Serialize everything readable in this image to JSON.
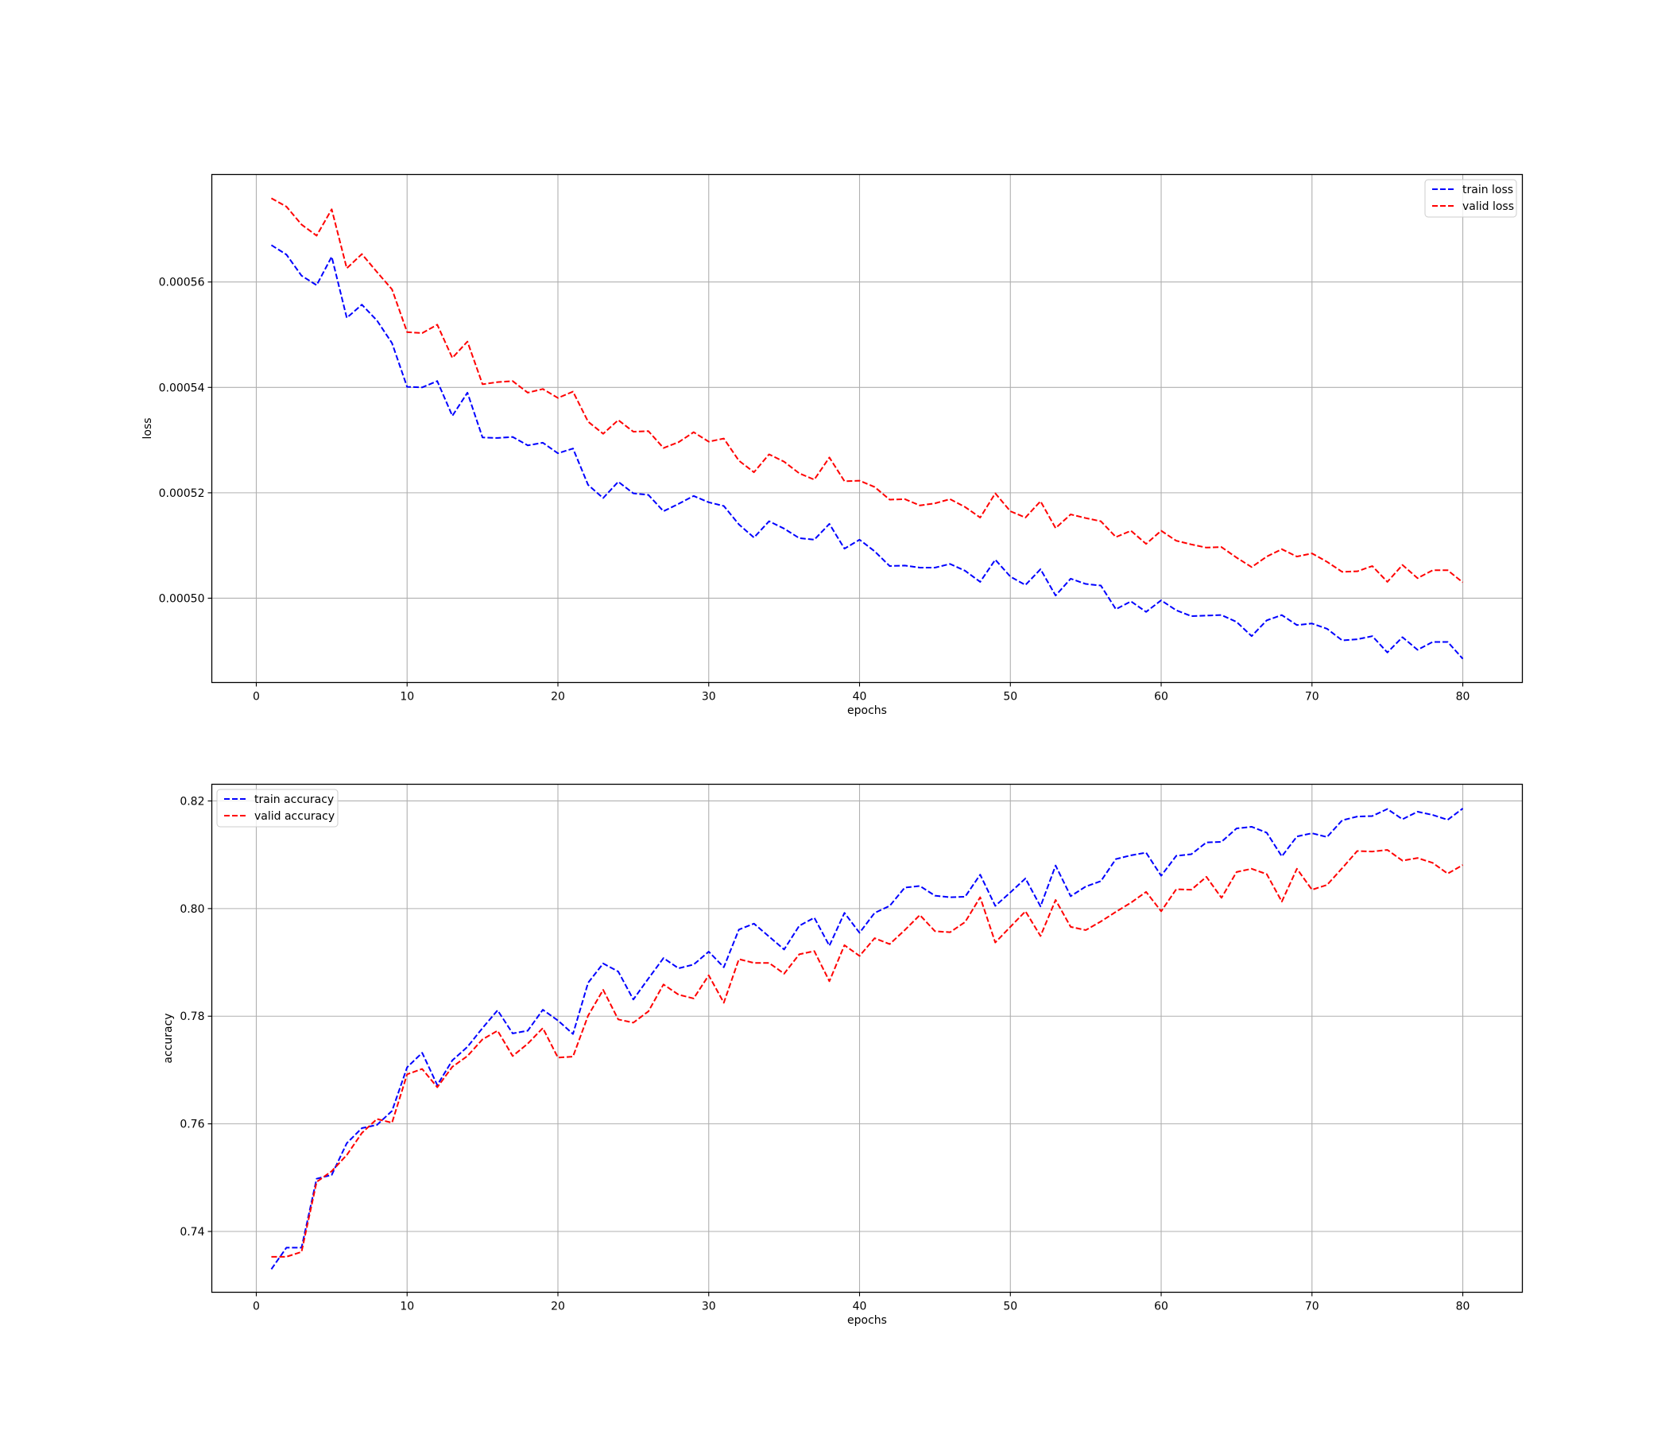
{
  "chart_data": [
    {
      "type": "line",
      "title": "",
      "xlabel": "epochs",
      "ylabel": "loss",
      "xlim": [
        -2.95,
        83.95
      ],
      "ylim": [
        0.000484,
        0.0005804
      ],
      "xticks": [
        0,
        10,
        20,
        30,
        40,
        50,
        60,
        70,
        80
      ],
      "yticks": [
        0.0005,
        0.00052,
        0.00054,
        0.00056
      ],
      "ytick_labels": [
        "0.00050",
        "0.00052",
        "0.00054",
        "0.00056"
      ],
      "grid": true,
      "legend_position": "top-right",
      "x": [
        1,
        2,
        3,
        4,
        5,
        6,
        7,
        8,
        9,
        10,
        11,
        12,
        13,
        14,
        15,
        16,
        17,
        18,
        19,
        20,
        21,
        22,
        23,
        24,
        25,
        26,
        27,
        28,
        29,
        30,
        31,
        32,
        33,
        34,
        35,
        36,
        37,
        38,
        39,
        40,
        41,
        42,
        43,
        44,
        45,
        46,
        47,
        48,
        49,
        50,
        51,
        52,
        53,
        54,
        55,
        56,
        57,
        58,
        59,
        60,
        61,
        62,
        63,
        64,
        65,
        66,
        67,
        68,
        69,
        70,
        71,
        72,
        73,
        74,
        75,
        76,
        77,
        78,
        79,
        80
      ],
      "series": [
        {
          "name": "train loss",
          "color": "#0000ff",
          "values": [
            0.000567,
            0.0005652,
            0.0005612,
            0.0005594,
            0.0005648,
            0.0005532,
            0.0005557,
            0.0005527,
            0.0005484,
            0.0005401,
            0.00054,
            0.0005412,
            0.0005346,
            0.000539,
            0.0005305,
            0.0005304,
            0.0005306,
            0.000529,
            0.0005295,
            0.0005275,
            0.0005284,
            0.0005215,
            0.000519,
            0.0005221,
            0.0005199,
            0.0005196,
            0.0005165,
            0.0005179,
            0.0005194,
            0.0005182,
            0.0005175,
            0.000514,
            0.0005115,
            0.0005146,
            0.0005132,
            0.0005114,
            0.0005111,
            0.0005141,
            0.0005094,
            0.0005111,
            0.0005089,
            0.0005061,
            0.0005062,
            0.0005058,
            0.0005058,
            0.0005065,
            0.0005052,
            0.0005031,
            0.0005073,
            0.0005041,
            0.0005025,
            0.0005055,
            0.0005005,
            0.0005037,
            0.0005027,
            0.0005024,
            0.0004979,
            0.0004994,
            0.0004974,
            0.0004996,
            0.0004977,
            0.0004966,
            0.0004967,
            0.0004968,
            0.0004955,
            0.0004928,
            0.0004958,
            0.0004968,
            0.0004949,
            0.0004952,
            0.0004942,
            0.000492,
            0.0004922,
            0.0004928,
            0.0004897,
            0.0004926,
            0.0004902,
            0.0004917,
            0.0004917,
            0.0004885
          ]
        },
        {
          "name": "valid loss",
          "color": "#ff0000",
          "values": [
            0.0005759,
            0.0005743,
            0.0005709,
            0.0005688,
            0.0005738,
            0.0005626,
            0.0005653,
            0.0005619,
            0.0005586,
            0.0005505,
            0.0005503,
            0.0005519,
            0.0005456,
            0.0005487,
            0.0005406,
            0.000541,
            0.0005412,
            0.000539,
            0.0005397,
            0.000538,
            0.0005392,
            0.0005335,
            0.0005312,
            0.0005338,
            0.0005316,
            0.0005317,
            0.0005285,
            0.0005296,
            0.0005315,
            0.0005297,
            0.0005303,
            0.0005261,
            0.0005239,
            0.0005273,
            0.0005259,
            0.0005237,
            0.0005225,
            0.0005267,
            0.0005222,
            0.0005223,
            0.0005211,
            0.0005187,
            0.0005188,
            0.0005176,
            0.000518,
            0.0005188,
            0.0005173,
            0.0005153,
            0.0005199,
            0.0005165,
            0.0005153,
            0.0005184,
            0.0005133,
            0.0005159,
            0.0005152,
            0.0005146,
            0.0005116,
            0.0005128,
            0.0005103,
            0.0005128,
            0.0005109,
            0.0005102,
            0.0005096,
            0.0005097,
            0.0005077,
            0.0005059,
            0.0005079,
            0.0005093,
            0.0005079,
            0.0005085,
            0.0005069,
            0.000505,
            0.0005051,
            0.0005061,
            0.0005031,
            0.0005063,
            0.0005038,
            0.0005053,
            0.0005053,
            0.000503
          ]
        }
      ]
    },
    {
      "type": "line",
      "title": "",
      "xlabel": "epochs",
      "ylabel": "accuracy",
      "xlim": [
        -2.95,
        83.95
      ],
      "ylim": [
        0.7287,
        0.8231
      ],
      "xticks": [
        0,
        10,
        20,
        30,
        40,
        50,
        60,
        70,
        80
      ],
      "yticks": [
        0.74,
        0.76,
        0.78,
        0.8,
        0.82
      ],
      "ytick_labels": [
        "0.74",
        "0.76",
        "0.78",
        "0.80",
        "0.82"
      ],
      "grid": true,
      "legend_position": "top-left",
      "x": [
        1,
        2,
        3,
        4,
        5,
        6,
        7,
        8,
        9,
        10,
        11,
        12,
        13,
        14,
        15,
        16,
        17,
        18,
        19,
        20,
        21,
        22,
        23,
        24,
        25,
        26,
        27,
        28,
        29,
        30,
        31,
        32,
        33,
        34,
        35,
        36,
        37,
        38,
        39,
        40,
        41,
        42,
        43,
        44,
        45,
        46,
        47,
        48,
        49,
        50,
        51,
        52,
        53,
        54,
        55,
        56,
        57,
        58,
        59,
        60,
        61,
        62,
        63,
        64,
        65,
        66,
        67,
        68,
        69,
        70,
        71,
        72,
        73,
        74,
        75,
        76,
        77,
        78,
        79,
        80
      ],
      "series": [
        {
          "name": "train accuracy",
          "color": "#0000ff",
          "values": [
            0.733,
            0.737,
            0.737,
            0.7498,
            0.7505,
            0.7564,
            0.7592,
            0.7598,
            0.7624,
            0.7705,
            0.7732,
            0.7672,
            0.7718,
            0.7743,
            0.7778,
            0.7811,
            0.7768,
            0.7773,
            0.7812,
            0.7792,
            0.7767,
            0.7862,
            0.7898,
            0.7883,
            0.7831,
            0.787,
            0.7908,
            0.7889,
            0.7896,
            0.792,
            0.7891,
            0.7961,
            0.7972,
            0.7948,
            0.7924,
            0.7968,
            0.7983,
            0.7931,
            0.7992,
            0.7955,
            0.7992,
            0.8005,
            0.8039,
            0.8042,
            0.8024,
            0.8021,
            0.8022,
            0.8063,
            0.8005,
            0.803,
            0.8056,
            0.8004,
            0.808,
            0.8023,
            0.8041,
            0.8051,
            0.8092,
            0.8099,
            0.8104,
            0.8061,
            0.8098,
            0.8101,
            0.8123,
            0.8124,
            0.8149,
            0.8152,
            0.8141,
            0.8097,
            0.8134,
            0.814,
            0.8133,
            0.8164,
            0.8171,
            0.8172,
            0.8185,
            0.8166,
            0.818,
            0.8174,
            0.8165,
            0.8186
          ]
        },
        {
          "name": "valid accuracy",
          "color": "#ff0000",
          "values": [
            0.7353,
            0.7353,
            0.7362,
            0.7492,
            0.7512,
            0.7542,
            0.7583,
            0.7609,
            0.7602,
            0.7692,
            0.7702,
            0.7668,
            0.7706,
            0.7726,
            0.7757,
            0.7773,
            0.7726,
            0.7749,
            0.7778,
            0.7723,
            0.7725,
            0.7801,
            0.7849,
            0.7794,
            0.7788,
            0.7809,
            0.7859,
            0.784,
            0.7833,
            0.7876,
            0.7825,
            0.7906,
            0.7899,
            0.7899,
            0.7879,
            0.7915,
            0.7921,
            0.7865,
            0.7932,
            0.7912,
            0.7945,
            0.7934,
            0.796,
            0.7988,
            0.7958,
            0.7956,
            0.7975,
            0.8021,
            0.7937,
            0.7966,
            0.7995,
            0.7949,
            0.8016,
            0.7966,
            0.796,
            0.7976,
            0.7994,
            0.8011,
            0.8031,
            0.7995,
            0.8036,
            0.8035,
            0.8059,
            0.802,
            0.8068,
            0.8074,
            0.8064,
            0.8013,
            0.8074,
            0.8035,
            0.8044,
            0.8075,
            0.8107,
            0.8106,
            0.8109,
            0.8089,
            0.8094,
            0.8085,
            0.8065,
            0.8081
          ]
        }
      ]
    }
  ]
}
